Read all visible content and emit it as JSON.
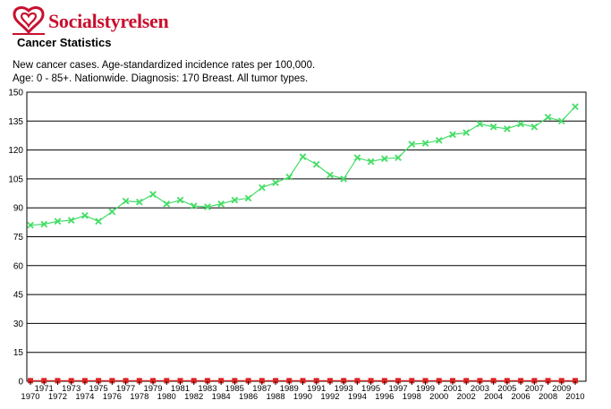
{
  "header": {
    "brand": "Socialstyrelsen",
    "brand_color": "#c8102e",
    "logo_icon": "socialstyrelsen-logo-icon",
    "app_title": "Cancer Statistics"
  },
  "chart_data": {
    "type": "line",
    "subtitle_lines": [
      "New cancer cases. Age-standardized incidence rates per 100,000.",
      "Age: 0 - 85+. Nationwide. Diagnosis: 170 Breast. All tumor types."
    ],
    "x": [
      1970,
      1971,
      1972,
      1973,
      1974,
      1975,
      1976,
      1977,
      1978,
      1979,
      1980,
      1981,
      1982,
      1983,
      1984,
      1985,
      1986,
      1987,
      1988,
      1989,
      1990,
      1991,
      1992,
      1993,
      1994,
      1995,
      1996,
      1997,
      1998,
      1999,
      2000,
      2001,
      2002,
      2003,
      2004,
      2005,
      2006,
      2007,
      2008,
      2009,
      2010
    ],
    "x_tick_labels_upper": [
      "1971",
      "1973",
      "1975",
      "1977",
      "1979",
      "1981",
      "1983",
      "1985",
      "1987",
      "1989",
      "1991",
      "1993",
      "1995",
      "1997",
      "1999",
      "2001",
      "2003",
      "2005",
      "2007",
      "2009"
    ],
    "x_tick_labels_lower": [
      "1970",
      "1972",
      "1974",
      "1976",
      "1978",
      "1980",
      "1982",
      "1984",
      "1986",
      "1988",
      "1990",
      "1992",
      "1994",
      "1996",
      "1998",
      "2000",
      "2002",
      "2004",
      "2006",
      "2008",
      "2010"
    ],
    "y_ticks": [
      0,
      15,
      30,
      45,
      60,
      75,
      90,
      105,
      120,
      135,
      150
    ],
    "ylim": [
      0,
      150
    ],
    "grid": true,
    "series": [
      {
        "color": "#44dd66",
        "marker": "x",
        "values": [
          81,
          81.5,
          83,
          83.5,
          86,
          83,
          88,
          93.5,
          93,
          97,
          92,
          94,
          91,
          90.5,
          92,
          94,
          95,
          100.5,
          103,
          106,
          116.5,
          112.5,
          107,
          105,
          116,
          114,
          115.5,
          116,
          123,
          123.5,
          125,
          128,
          129,
          133.5,
          132,
          131,
          133.5,
          132,
          137,
          135,
          142.5
        ]
      },
      {
        "color": "#dd2222",
        "marker": "square",
        "values": [
          0.3,
          0.3,
          0.3,
          0.3,
          0.3,
          0.3,
          0.3,
          0.3,
          0.3,
          0.3,
          0.3,
          0.3,
          0.3,
          0.3,
          0.3,
          0.3,
          0.3,
          0.3,
          0.3,
          0.3,
          0.3,
          0.3,
          0.3,
          0.3,
          0.3,
          0.3,
          0.3,
          0.3,
          0.3,
          0.3,
          0.3,
          0.3,
          0.3,
          0.3,
          0.3,
          0.3,
          0.3,
          0.3,
          0.3,
          0.3,
          0.3
        ]
      }
    ]
  }
}
